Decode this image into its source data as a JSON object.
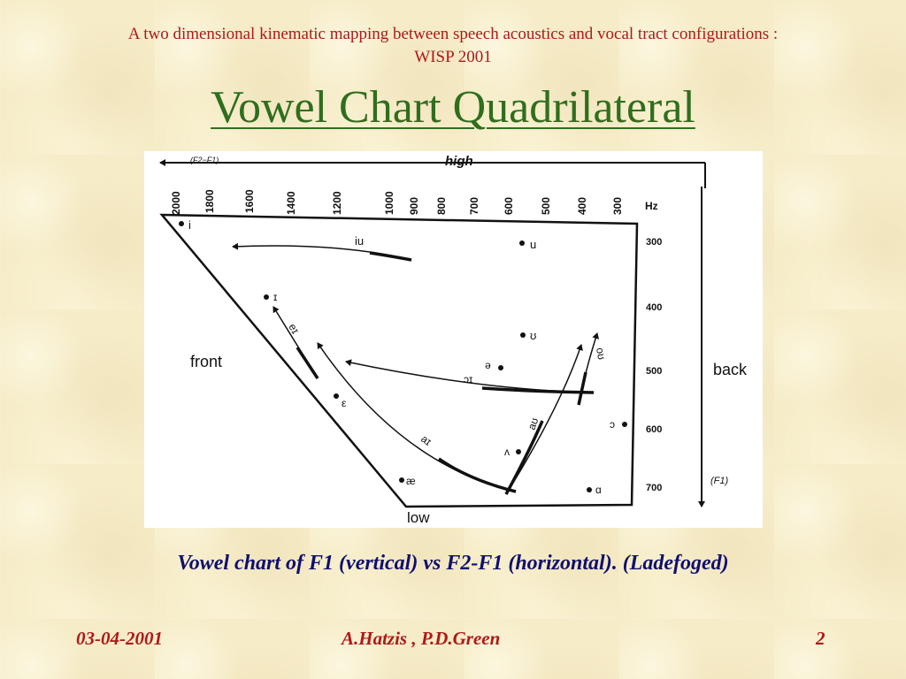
{
  "header": {
    "subtitle_line1": "A two dimensional kinematic mapping between speech acoustics and vocal tract configurations :",
    "subtitle_line2": "WISP 2001",
    "title": "Vowel Chart Quadrilateral"
  },
  "diagram": {
    "top_axis_label": "(F2−F1)",
    "high_label": "high",
    "low_label": "low",
    "front_label": "front",
    "back_label": "back",
    "f1_axis_label": "(F1)",
    "hz_label": "Hz",
    "f2_ticks": [
      "2000",
      "1800",
      "1600",
      "1400",
      "1200",
      "1000",
      "900",
      "800",
      "700",
      "600",
      "500",
      "400",
      "300"
    ],
    "f1_ticks": [
      "300",
      "400",
      "500",
      "600",
      "700"
    ],
    "vowels": [
      "i",
      "u",
      "ɪ",
      "ʊ",
      "ə",
      "ε",
      "ɔ",
      "ʌ",
      "æ",
      "ɑ"
    ],
    "diphthongs": [
      "iu",
      "eɪ",
      "ɔɪ",
      "aɪ",
      "aʊ",
      "oʊ"
    ]
  },
  "caption": "Vowel chart of F1 (vertical) vs F2-F1 (horizontal). (Ladefoged)",
  "footer": {
    "date": "03-04-2001",
    "authors": "A.Hatzis ,  P.D.Green",
    "page": "2"
  },
  "colors": {
    "subtitle": "#b01818",
    "title": "#2f6e1e",
    "caption": "#0f0f70",
    "footer": "#b01818",
    "background": "#f6ecc8"
  }
}
